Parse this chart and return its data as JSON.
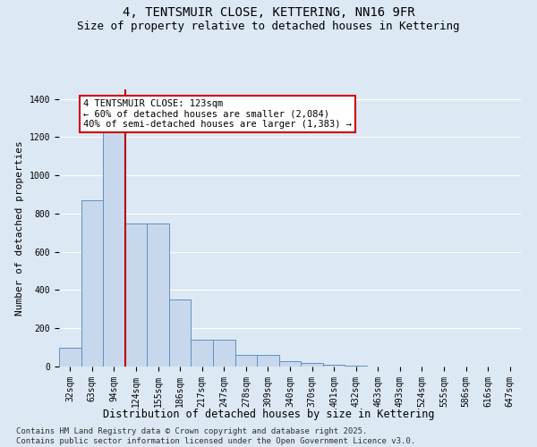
{
  "title1": "4, TENTSMUIR CLOSE, KETTERING, NN16 9FR",
  "title2": "Size of property relative to detached houses in Kettering",
  "xlabel": "Distribution of detached houses by size in Kettering",
  "ylabel": "Number of detached properties",
  "categories": [
    "32sqm",
    "63sqm",
    "94sqm",
    "124sqm",
    "155sqm",
    "186sqm",
    "217sqm",
    "247sqm",
    "278sqm",
    "309sqm",
    "340sqm",
    "370sqm",
    "401sqm",
    "432sqm",
    "463sqm",
    "493sqm",
    "524sqm",
    "555sqm",
    "586sqm",
    "616sqm",
    "647sqm"
  ],
  "values": [
    100,
    870,
    1240,
    750,
    750,
    350,
    140,
    140,
    60,
    60,
    30,
    20,
    10,
    5,
    2,
    2,
    1,
    0,
    0,
    0,
    0
  ],
  "bar_color": "#c8d8ec",
  "bar_edgecolor": "#6090c0",
  "vline_color": "#bb0000",
  "annotation_text": "4 TENTSMUIR CLOSE: 123sqm\n← 60% of detached houses are smaller (2,084)\n40% of semi-detached houses are larger (1,383) →",
  "annotation_box_color": "#cc0000",
  "ylim": [
    0,
    1450
  ],
  "yticks": [
    0,
    200,
    400,
    600,
    800,
    1000,
    1200,
    1400
  ],
  "footnote": "Contains HM Land Registry data © Crown copyright and database right 2025.\nContains public sector information licensed under the Open Government Licence v3.0.",
  "bg_color": "#dce8f4",
  "plot_bg_color": "#dce8f4",
  "grid_color": "#ffffff",
  "title1_fontsize": 10,
  "title2_fontsize": 9,
  "xlabel_fontsize": 8.5,
  "ylabel_fontsize": 8,
  "tick_fontsize": 7,
  "annot_fontsize": 7.5,
  "footnote_fontsize": 6.5
}
